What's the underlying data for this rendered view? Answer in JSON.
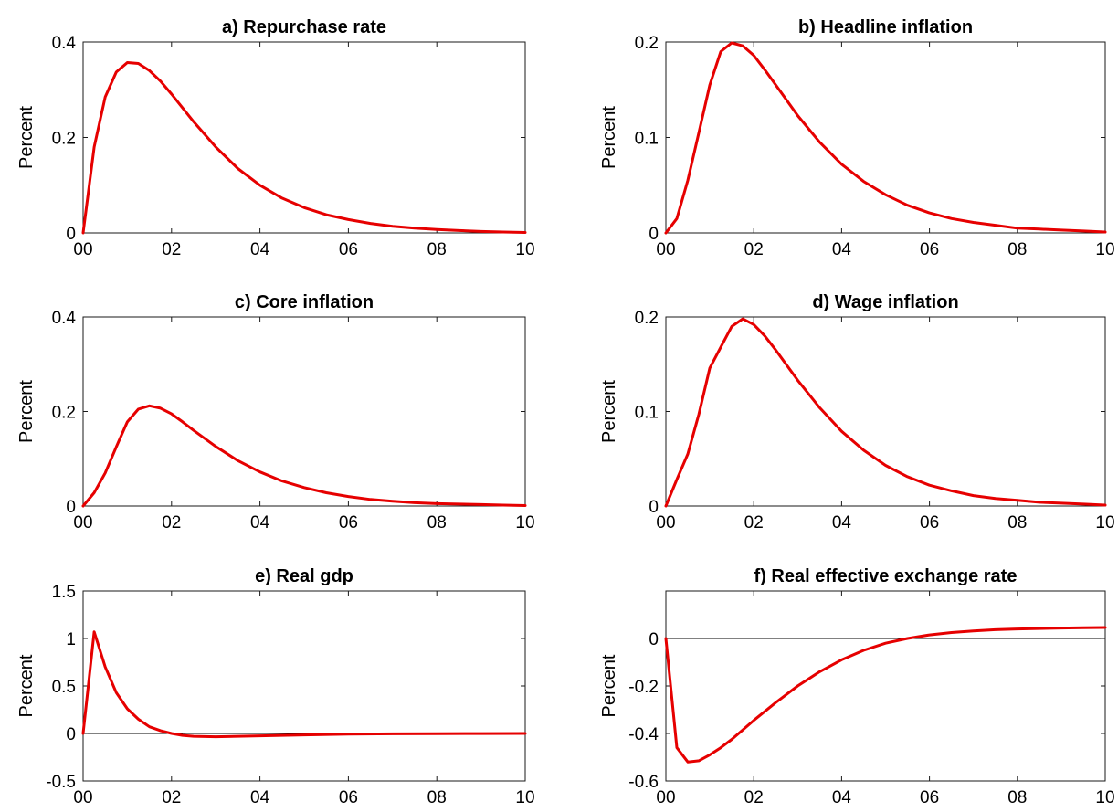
{
  "chart_data": [
    {
      "type": "line",
      "title": "a) Repurchase rate",
      "ylabel": "Percent",
      "xlim": [
        0,
        40
      ],
      "ylim": [
        0,
        0.4
      ],
      "xticks": [
        0,
        8,
        16,
        24,
        32,
        40
      ],
      "xtick_labels": [
        "00",
        "02",
        "04",
        "06",
        "08",
        "10"
      ],
      "yticks": [
        0,
        0.2,
        0.4
      ],
      "ytick_labels": [
        "0",
        "0.2",
        "0.4"
      ],
      "zero_line": false,
      "series": [
        {
          "color": "#e60000",
          "x": [
            0,
            1,
            2,
            3,
            4,
            5,
            6,
            7,
            8,
            10,
            12,
            14,
            16,
            18,
            20,
            22,
            24,
            26,
            28,
            30,
            32,
            34,
            36,
            38,
            40
          ],
          "y": [
            0,
            0.18,
            0.285,
            0.337,
            0.357,
            0.355,
            0.34,
            0.318,
            0.291,
            0.233,
            0.18,
            0.135,
            0.1,
            0.073,
            0.053,
            0.038,
            0.028,
            0.02,
            0.014,
            0.01,
            0.007,
            0.005,
            0.003,
            0.002,
            0.001
          ]
        }
      ]
    },
    {
      "type": "line",
      "title": "b) Headline inflation",
      "ylabel": "Percent",
      "xlim": [
        0,
        40
      ],
      "ylim": [
        0,
        0.2
      ],
      "xticks": [
        0,
        8,
        16,
        24,
        32,
        40
      ],
      "xtick_labels": [
        "00",
        "02",
        "04",
        "06",
        "08",
        "10"
      ],
      "yticks": [
        0,
        0.1,
        0.2
      ],
      "ytick_labels": [
        "0",
        "0.1",
        "0.2"
      ],
      "zero_line": false,
      "series": [
        {
          "color": "#e60000",
          "x": [
            0,
            1,
            2,
            3,
            4,
            5,
            6,
            7,
            8,
            9,
            10,
            12,
            14,
            16,
            18,
            20,
            22,
            24,
            26,
            28,
            30,
            32,
            34,
            36,
            38,
            40
          ],
          "y": [
            0,
            0.015,
            0.055,
            0.105,
            0.155,
            0.19,
            0.199,
            0.196,
            0.186,
            0.171,
            0.155,
            0.123,
            0.095,
            0.072,
            0.054,
            0.04,
            0.029,
            0.021,
            0.015,
            0.011,
            0.008,
            0.005,
            0.004,
            0.003,
            0.002,
            0.001
          ]
        }
      ]
    },
    {
      "type": "line",
      "title": "c) Core inflation",
      "ylabel": "Percent",
      "xlim": [
        0,
        40
      ],
      "ylim": [
        0,
        0.4
      ],
      "xticks": [
        0,
        8,
        16,
        24,
        32,
        40
      ],
      "xtick_labels": [
        "00",
        "02",
        "04",
        "06",
        "08",
        "10"
      ],
      "yticks": [
        0,
        0.2,
        0.4
      ],
      "ytick_labels": [
        "0",
        "0.2",
        "0.4"
      ],
      "zero_line": false,
      "series": [
        {
          "color": "#e60000",
          "x": [
            0,
            1,
            2,
            3,
            4,
            5,
            6,
            7,
            8,
            9,
            10,
            12,
            14,
            16,
            18,
            20,
            22,
            24,
            26,
            28,
            30,
            32,
            34,
            36,
            38,
            40
          ],
          "y": [
            0,
            0.028,
            0.07,
            0.125,
            0.178,
            0.205,
            0.212,
            0.207,
            0.195,
            0.178,
            0.16,
            0.126,
            0.096,
            0.072,
            0.053,
            0.039,
            0.028,
            0.02,
            0.014,
            0.01,
            0.007,
            0.005,
            0.004,
            0.003,
            0.002,
            0.001
          ]
        }
      ]
    },
    {
      "type": "line",
      "title": "d) Wage inflation",
      "ylabel": "Percent",
      "xlim": [
        0,
        40
      ],
      "ylim": [
        0,
        0.2
      ],
      "xticks": [
        0,
        8,
        16,
        24,
        32,
        40
      ],
      "xtick_labels": [
        "00",
        "02",
        "04",
        "06",
        "08",
        "10"
      ],
      "yticks": [
        0,
        0.1,
        0.2
      ],
      "ytick_labels": [
        "0",
        "0.1",
        "0.2"
      ],
      "zero_line": false,
      "series": [
        {
          "color": "#e60000",
          "x": [
            0,
            1,
            2,
            3,
            4,
            5,
            6,
            7,
            8,
            9,
            10,
            12,
            14,
            16,
            18,
            20,
            22,
            24,
            26,
            28,
            30,
            32,
            34,
            36,
            38,
            40
          ],
          "y": [
            0,
            0.028,
            0.055,
            0.097,
            0.146,
            0.168,
            0.19,
            0.198,
            0.192,
            0.18,
            0.165,
            0.133,
            0.104,
            0.079,
            0.059,
            0.043,
            0.031,
            0.022,
            0.016,
            0.011,
            0.008,
            0.006,
            0.004,
            0.003,
            0.002,
            0.001
          ]
        }
      ]
    },
    {
      "type": "line",
      "title": "e) Real gdp",
      "ylabel": "Percent",
      "xlim": [
        0,
        40
      ],
      "ylim": [
        -0.5,
        1.5
      ],
      "xticks": [
        0,
        8,
        16,
        24,
        32,
        40
      ],
      "xtick_labels": [
        "00",
        "02",
        "04",
        "06",
        "08",
        "10"
      ],
      "yticks": [
        -0.5,
        0,
        0.5,
        1,
        1.5
      ],
      "ytick_labels": [
        "-0.5",
        "0",
        "0.5",
        "1",
        "1.5"
      ],
      "zero_line": true,
      "series": [
        {
          "color": "#e60000",
          "x": [
            0,
            1,
            2,
            3,
            4,
            5,
            6,
            7,
            8,
            9,
            10,
            12,
            14,
            16,
            18,
            20,
            24,
            28,
            32,
            36,
            40
          ],
          "y": [
            0,
            1.07,
            0.7,
            0.43,
            0.26,
            0.15,
            0.07,
            0.03,
            0.0,
            -0.02,
            -0.03,
            -0.035,
            -0.03,
            -0.025,
            -0.02,
            -0.015,
            -0.008,
            -0.004,
            -0.002,
            -0.001,
            0.0
          ]
        }
      ]
    },
    {
      "type": "line",
      "title": "f) Real effective exchange rate",
      "ylabel": "Percent",
      "xlim": [
        0,
        40
      ],
      "ylim": [
        -0.6,
        0.2
      ],
      "xticks": [
        0,
        8,
        16,
        24,
        32,
        40
      ],
      "xtick_labels": [
        "00",
        "02",
        "04",
        "06",
        "08",
        "10"
      ],
      "yticks": [
        -0.6,
        -0.4,
        -0.2,
        0
      ],
      "ytick_labels": [
        "-0.6",
        "-0.4",
        "-0.2",
        "0"
      ],
      "zero_line": true,
      "series": [
        {
          "color": "#e60000",
          "x": [
            0,
            1,
            2,
            3,
            4,
            5,
            6,
            7,
            8,
            10,
            12,
            14,
            16,
            18,
            20,
            22,
            24,
            26,
            28,
            30,
            32,
            34,
            36,
            38,
            40
          ],
          "y": [
            0,
            -0.46,
            -0.52,
            -0.515,
            -0.49,
            -0.46,
            -0.425,
            -0.385,
            -0.345,
            -0.27,
            -0.2,
            -0.14,
            -0.09,
            -0.05,
            -0.02,
            0.0,
            0.015,
            0.025,
            0.032,
            0.037,
            0.04,
            0.042,
            0.044,
            0.045,
            0.046
          ]
        }
      ]
    }
  ]
}
